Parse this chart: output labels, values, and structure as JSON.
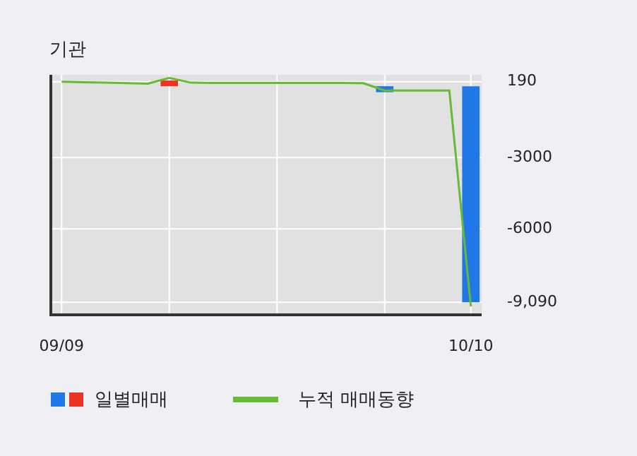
{
  "chart_data": {
    "type": "bar",
    "title": "기관",
    "categories": [
      "09/09",
      null,
      null,
      null,
      null,
      null,
      null,
      null,
      null,
      null,
      null,
      null,
      null,
      null,
      null,
      null,
      null,
      null,
      null,
      "10/10"
    ],
    "series": [
      {
        "name": "일별매매",
        "colors": [
          "#1f77e8",
          "#1f77e8",
          "#1f77e8",
          "#1f77e8",
          "#1f77e8",
          "#ee3322",
          "#1f77e8",
          "#1f77e8",
          "#1f77e8",
          "#1f77e8",
          "#1f77e8",
          "#1f77e8",
          "#1f77e8",
          "#1f77e8",
          "#1f77e8",
          "#1f77e8",
          "#1f77e8",
          "#1f77e8",
          "#1f77e8",
          "#1f77e8"
        ],
        "values": [
          0,
          0,
          0,
          0,
          0,
          240,
          0,
          0,
          0,
          0,
          0,
          0,
          0,
          0,
          0,
          -250,
          0,
          0,
          0,
          -9090
        ]
      },
      {
        "type": "line",
        "name": "누적 매매동향",
        "color": "#66bb33",
        "values": [
          190,
          170,
          150,
          130,
          110,
          350,
          150,
          140,
          140,
          140,
          140,
          140,
          140,
          140,
          130,
          -180,
          -180,
          -180,
          -180,
          -9270
        ]
      }
    ],
    "ylim": [
      -9620,
      480
    ],
    "yticks": [
      190,
      -3000,
      -6000,
      {
        "value": -9090,
        "label": "-9,090"
      }
    ],
    "grid": true,
    "legend": "bottom"
  }
}
